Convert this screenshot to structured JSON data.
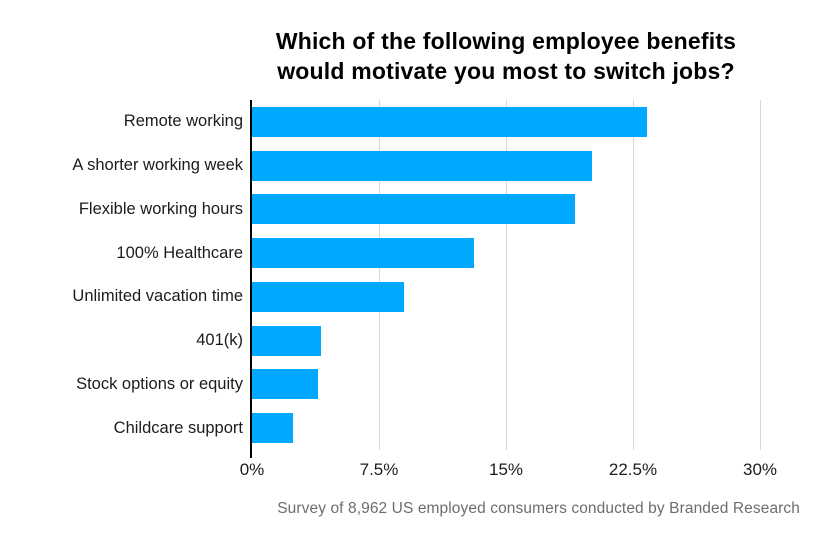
{
  "title": {
    "line1": "Which of the following employee benefits",
    "line2": "would motivate you most to switch jobs?"
  },
  "chart_data": {
    "type": "bar",
    "orientation": "horizontal",
    "title": "Which of the following employee benefits would motivate you most to switch jobs?",
    "categories": [
      "Remote working",
      "A shorter working week",
      "Flexible working hours",
      "100% Healthcare",
      "Unlimited vacation time",
      "401(k)",
      "Stock options or equity",
      "Childcare support"
    ],
    "values": [
      23.3,
      20.1,
      19.1,
      13.1,
      9.0,
      4.1,
      3.9,
      2.4
    ],
    "unit": "%",
    "xlabel": "",
    "ylabel": "",
    "xlim": [
      0,
      30
    ],
    "x_ticks": [
      "0%",
      "7.5%",
      "15%",
      "22.5%",
      "30%"
    ],
    "grid": "vertical-gridlines",
    "legend": "none",
    "bar_color": "#00a8ff",
    "gridline_color": "#d8d8d8"
  },
  "footer": {
    "source_note": "Survey of 8,962 US employed consumers conducted by Branded Research"
  }
}
